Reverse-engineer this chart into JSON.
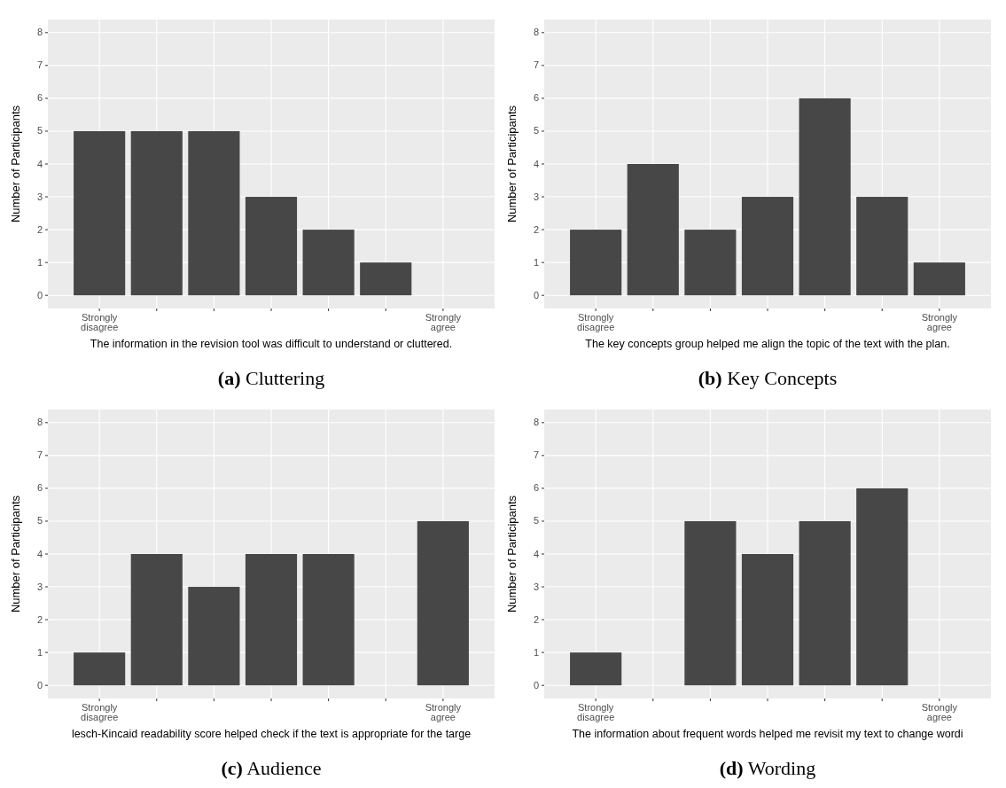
{
  "chart_data": [
    {
      "type": "bar",
      "title": "(a) Cluttering",
      "xlabel": "The information in the revision tool was difficult to understand or cluttered.",
      "ylabel": "Number of Participants",
      "categories": [
        "Strongly\ndisagree",
        null,
        null,
        null,
        null,
        null,
        "Strongly\nagree"
      ],
      "values": [
        5,
        5,
        5,
        3,
        2,
        1,
        0
      ],
      "color": "#474747",
      "ylim": [
        -0.4,
        8.4
      ],
      "yticks": [
        0,
        1,
        2,
        3,
        4,
        5,
        6,
        7,
        8
      ],
      "grid": true
    },
    {
      "type": "bar",
      "title": "(b) Key Concepts",
      "xlabel": "The key concepts group helped me align the topic of the text with the plan.",
      "ylabel": "Number of Participants",
      "categories": [
        "Strongly\ndisagree",
        null,
        null,
        null,
        null,
        null,
        "Strongly\nagree"
      ],
      "values": [
        2,
        4,
        2,
        3,
        6,
        3,
        1
      ],
      "color": "#474747",
      "ylim": [
        -0.4,
        8.4
      ],
      "yticks": [
        0,
        1,
        2,
        3,
        4,
        5,
        6,
        7,
        8
      ],
      "grid": true
    },
    {
      "type": "bar",
      "title": "(c) Audience",
      "xlabel": "lesch-Kincaid readability score helped check if the text is appropriate for the targe",
      "ylabel": "Number of Participants",
      "categories": [
        "Strongly\ndisagree",
        null,
        null,
        null,
        null,
        null,
        "Strongly\nagree"
      ],
      "values": [
        1,
        4,
        3,
        4,
        4,
        0,
        5
      ],
      "color": "#474747",
      "ylim": [
        -0.4,
        8.4
      ],
      "yticks": [
        0,
        1,
        2,
        3,
        4,
        5,
        6,
        7,
        8
      ],
      "grid": true
    },
    {
      "type": "bar",
      "title": "(d) Wording",
      "xlabel": "The information about frequent words helped me revisit my text to change wordi",
      "ylabel": "Number of Participants",
      "categories": [
        "Strongly\ndisagree",
        null,
        null,
        null,
        null,
        null,
        "Strongly\nagree"
      ],
      "values": [
        1,
        0,
        5,
        4,
        5,
        6,
        0
      ],
      "color": "#474747",
      "ylim": [
        -0.4,
        8.4
      ],
      "yticks": [
        0,
        1,
        2,
        3,
        4,
        5,
        6,
        7,
        8
      ],
      "grid": true
    }
  ]
}
